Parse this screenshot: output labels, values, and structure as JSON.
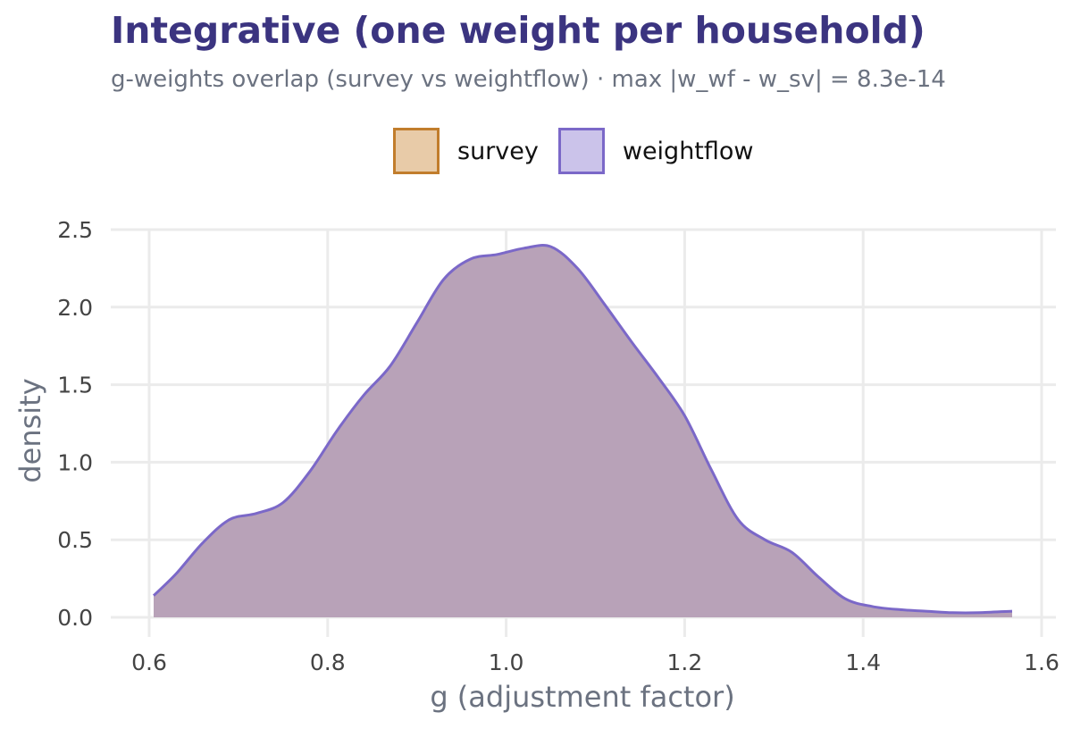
{
  "header": {
    "title": "Integrative (one weight per household)",
    "subtitle": "g-weights overlap (survey vs weightflow) · max |w_wf - w_sv| = 8.3e-14"
  },
  "legend": {
    "placement": "top-center",
    "items": [
      {
        "label": "survey",
        "fill": "#e8cba8",
        "stroke": "#c17d2c"
      },
      {
        "label": "weightflow",
        "fill": "#cbc3ea",
        "stroke": "#7b68c8"
      }
    ]
  },
  "chart_data": {
    "type": "area",
    "title": "Integrative (one weight per household)",
    "subtitle": "g-weights overlap (survey vs weightflow) · max |w_wf - w_sv| = 8.3e-14",
    "xlabel": "g (adjustment factor)",
    "ylabel": "density",
    "xlim": [
      0.6,
      1.6
    ],
    "ylim": [
      0,
      2.5
    ],
    "xticks": [
      "0.6",
      "0.8",
      "1.0",
      "1.2",
      "1.4",
      "1.6"
    ],
    "yticks": [
      "0.0",
      "0.5",
      "1.0",
      "1.5",
      "2.0",
      "2.5"
    ],
    "grid": true,
    "overlap_fill": "#b8a2b8",
    "series": [
      {
        "name": "survey",
        "color": "#c17d2c",
        "x": [
          0.605,
          0.63,
          0.66,
          0.69,
          0.72,
          0.75,
          0.78,
          0.81,
          0.84,
          0.87,
          0.9,
          0.93,
          0.96,
          0.99,
          1.02,
          1.05,
          1.08,
          1.11,
          1.14,
          1.17,
          1.2,
          1.23,
          1.26,
          1.29,
          1.32,
          1.35,
          1.38,
          1.41,
          1.44,
          1.47,
          1.5,
          1.53,
          1.567
        ],
        "y": [
          0.14,
          0.28,
          0.48,
          0.63,
          0.67,
          0.74,
          0.94,
          1.2,
          1.43,
          1.62,
          1.9,
          2.18,
          2.31,
          2.34,
          2.38,
          2.39,
          2.25,
          2.02,
          1.78,
          1.55,
          1.3,
          0.95,
          0.63,
          0.5,
          0.42,
          0.26,
          0.12,
          0.07,
          0.05,
          0.04,
          0.03,
          0.03,
          0.04
        ]
      },
      {
        "name": "weightflow",
        "color": "#7b68c8",
        "x": [
          0.605,
          0.63,
          0.66,
          0.69,
          0.72,
          0.75,
          0.78,
          0.81,
          0.84,
          0.87,
          0.9,
          0.93,
          0.96,
          0.99,
          1.02,
          1.05,
          1.08,
          1.11,
          1.14,
          1.17,
          1.2,
          1.23,
          1.26,
          1.29,
          1.32,
          1.35,
          1.38,
          1.41,
          1.44,
          1.47,
          1.5,
          1.53,
          1.567
        ],
        "y": [
          0.14,
          0.28,
          0.48,
          0.63,
          0.67,
          0.74,
          0.94,
          1.2,
          1.43,
          1.62,
          1.9,
          2.18,
          2.31,
          2.34,
          2.38,
          2.39,
          2.25,
          2.02,
          1.78,
          1.55,
          1.3,
          0.95,
          0.63,
          0.5,
          0.42,
          0.26,
          0.12,
          0.07,
          0.05,
          0.04,
          0.03,
          0.03,
          0.04
        ]
      }
    ]
  }
}
